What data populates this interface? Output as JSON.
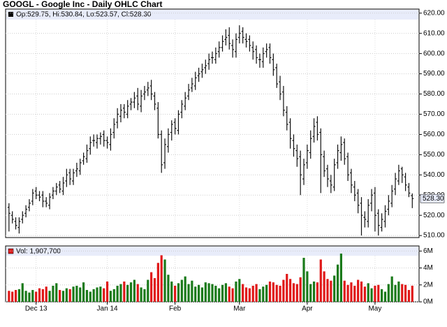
{
  "chart_data": {
    "type": "ohlc",
    "title": "GOOGL - Google Inc - Daily OHLC Chart",
    "price_legend": "Op:529.75, Hi:530.84, Lo:523.57, Cl:528.30",
    "volume_legend": "Vol: 1,907,700",
    "last_price_label": "528.30",
    "xticks": [
      {
        "value": 8,
        "label": "Dec 13"
      },
      {
        "value": 29,
        "label": "Jan 14"
      },
      {
        "value": 49,
        "label": "Feb"
      },
      {
        "value": 68,
        "label": "Mar"
      },
      {
        "value": 88,
        "label": "Apr"
      },
      {
        "value": 108,
        "label": "May"
      }
    ],
    "xlim": [
      -1,
      121
    ],
    "ylim": [
      509,
      622
    ],
    "yticks": [
      {
        "value": 510,
        "label": "510.00"
      },
      {
        "value": 520,
        "label": "520.00"
      },
      {
        "value": 530,
        "label": "530.00"
      },
      {
        "value": 540,
        "label": "540.00"
      },
      {
        "value": 550,
        "label": "550.00"
      },
      {
        "value": 560,
        "label": "560.00"
      },
      {
        "value": 570,
        "label": "570.00"
      },
      {
        "value": 580,
        "label": "580.00"
      },
      {
        "value": 590,
        "label": "590.00"
      },
      {
        "value": 600,
        "label": "600.00"
      },
      {
        "value": 610,
        "label": "610.00"
      },
      {
        "value": 620,
        "label": "620.00"
      }
    ],
    "vlim": [
      0,
      6.6
    ],
    "vticks": [
      {
        "value": 0,
        "label": "0M"
      },
      {
        "value": 2,
        "label": "2M"
      },
      {
        "value": 4,
        "label": "4M"
      },
      {
        "value": 6,
        "label": "6M"
      }
    ],
    "grid": true,
    "bar_color": "#111111",
    "up_color": "#1a7a1a",
    "down_color": "#e01818",
    "open": [
      524,
      520,
      517,
      514,
      518,
      521,
      524,
      527,
      532,
      530,
      530,
      527,
      525,
      530,
      532,
      535,
      532,
      537,
      541,
      537,
      542,
      542,
      547,
      548,
      553,
      557,
      556,
      558,
      560,
      557,
      555,
      561,
      566,
      569,
      573,
      570,
      575,
      576,
      579,
      574,
      580,
      582,
      584,
      579,
      573,
      560,
      546,
      554,
      561,
      566,
      562,
      571,
      574,
      579,
      583,
      584,
      589,
      591,
      593,
      595,
      598,
      597,
      601,
      603,
      607,
      609,
      604,
      601,
      608,
      611,
      607,
      607,
      603,
      602,
      597,
      596,
      601,
      603,
      597,
      593,
      586,
      581,
      571,
      566,
      557,
      552,
      549,
      538,
      546,
      551,
      559,
      566,
      561,
      549,
      543,
      537,
      534,
      546,
      551,
      556,
      549,
      541,
      534,
      531,
      526,
      519,
      517,
      526,
      531,
      521,
      514,
      517,
      523,
      526,
      533,
      537,
      543,
      539,
      534,
      529.75
    ],
    "high": [
      526,
      522,
      519,
      519,
      522,
      525,
      528,
      533,
      534,
      532,
      532,
      529,
      531,
      534,
      536,
      537,
      539,
      543,
      543,
      543,
      546,
      548,
      551,
      555,
      559,
      560,
      560,
      561,
      562,
      559,
      563,
      568,
      573,
      575,
      575,
      577,
      578,
      581,
      583,
      582,
      584,
      586,
      587,
      581,
      576,
      562,
      558,
      563,
      567,
      568,
      572,
      577,
      581,
      585,
      588,
      591,
      593,
      595,
      597,
      600,
      601,
      603,
      606,
      609,
      612,
      613,
      607,
      610,
      614,
      613,
      610,
      609,
      606,
      604,
      600,
      603,
      605,
      605,
      600,
      595,
      589,
      584,
      574,
      568,
      560,
      555,
      552,
      548,
      555,
      562,
      568,
      569,
      563,
      552,
      545,
      540,
      548,
      555,
      559,
      558,
      551,
      543,
      537,
      533,
      529,
      522,
      528,
      533,
      534,
      523,
      521,
      525,
      530,
      535,
      541,
      545,
      544,
      541,
      536,
      530.84
    ],
    "low": [
      512,
      516,
      513,
      511,
      516,
      519,
      522,
      525,
      528,
      527,
      524,
      524,
      523,
      528,
      530,
      531,
      530,
      534,
      535,
      535,
      539,
      540,
      545,
      546,
      550,
      554,
      553,
      555,
      554,
      553,
      552,
      558,
      563,
      566,
      568,
      568,
      572,
      573,
      572,
      571,
      577,
      579,
      577,
      572,
      558,
      541,
      543,
      551,
      557,
      560,
      560,
      568,
      572,
      577,
      581,
      582,
      586,
      588,
      590,
      592,
      595,
      595,
      598,
      601,
      604,
      602,
      598,
      598,
      605,
      605,
      603,
      601,
      597,
      595,
      593,
      593,
      598,
      595,
      589,
      583,
      577,
      569,
      562,
      553,
      549,
      544,
      530,
      535,
      543,
      548,
      556,
      557,
      531,
      539,
      534,
      531,
      532,
      543,
      547,
      545,
      537,
      531,
      527,
      521,
      510,
      514,
      514,
      522,
      512,
      510,
      512,
      514,
      520,
      524,
      530,
      535,
      536,
      532,
      529,
      523.57
    ],
    "close": [
      521,
      518,
      515,
      517,
      520,
      523,
      526,
      531,
      530,
      529,
      527,
      526,
      529,
      532,
      534,
      533,
      536,
      540,
      538,
      541,
      543,
      546,
      549,
      552,
      556,
      557,
      558,
      559,
      557,
      556,
      560,
      565,
      570,
      572,
      571,
      574,
      576,
      578,
      575,
      579,
      581,
      583,
      580,
      575,
      560,
      545,
      555,
      560,
      565,
      563,
      570,
      575,
      578,
      582,
      585,
      588,
      590,
      592,
      594,
      597,
      598,
      600,
      603,
      606,
      608,
      605,
      602,
      607,
      610,
      608,
      606,
      604,
      601,
      598,
      597,
      600,
      602,
      598,
      592,
      585,
      580,
      572,
      565,
      558,
      553,
      548,
      540,
      545,
      552,
      558,
      564,
      560,
      550,
      542,
      538,
      535,
      545,
      552,
      555,
      548,
      540,
      535,
      530,
      525,
      520,
      518,
      525,
      530,
      520,
      515,
      518,
      522,
      527,
      532,
      538,
      542,
      540,
      535,
      531,
      528.3
    ],
    "volume": [
      1.3,
      1.2,
      1.4,
      1.5,
      2.2,
      1.3,
      1.1,
      1.4,
      1.2,
      1.6,
      1.5,
      1.8,
      1.3,
      1.9,
      2.2,
      1.4,
      1.3,
      1.6,
      1.5,
      1.8,
      1.9,
      1.7,
      2.3,
      1.4,
      1.2,
      1.5,
      1.7,
      1.8,
      1.6,
      2.4,
      1.3,
      1.5,
      1.9,
      2.1,
      2.4,
      2.0,
      2.3,
      2.6,
      2.1,
      1.7,
      1.5,
      2.6,
      3.5,
      2.8,
      4.6,
      5.5,
      5.0,
      3.2,
      2.4,
      1.9,
      2.2,
      2.6,
      3.0,
      2.1,
      2.5,
      1.8,
      2.0,
      1.7,
      2.3,
      2.2,
      2.1,
      1.9,
      1.6,
      2.0,
      2.2,
      1.8,
      1.6,
      2.4,
      2.7,
      2.1,
      1.7,
      1.6,
      1.9,
      2.1,
      1.5,
      1.8,
      2.0,
      2.4,
      2.3,
      2.0,
      1.9,
      2.6,
      3.3,
      2.7,
      2.2,
      2.1,
      2.9,
      5.2,
      3.6,
      2.1,
      2.4,
      2.3,
      5.0,
      3.6,
      2.7,
      2.5,
      3.1,
      4.4,
      5.7,
      2.5,
      2.0,
      2.3,
      1.9,
      2.6,
      2.4,
      1.8,
      2.2,
      1.6,
      1.9,
      2.0,
      1.5,
      1.2,
      2.1,
      3.0,
      2.0,
      2.4,
      2.1,
      2.0,
      1.4,
      1.9077
    ]
  }
}
